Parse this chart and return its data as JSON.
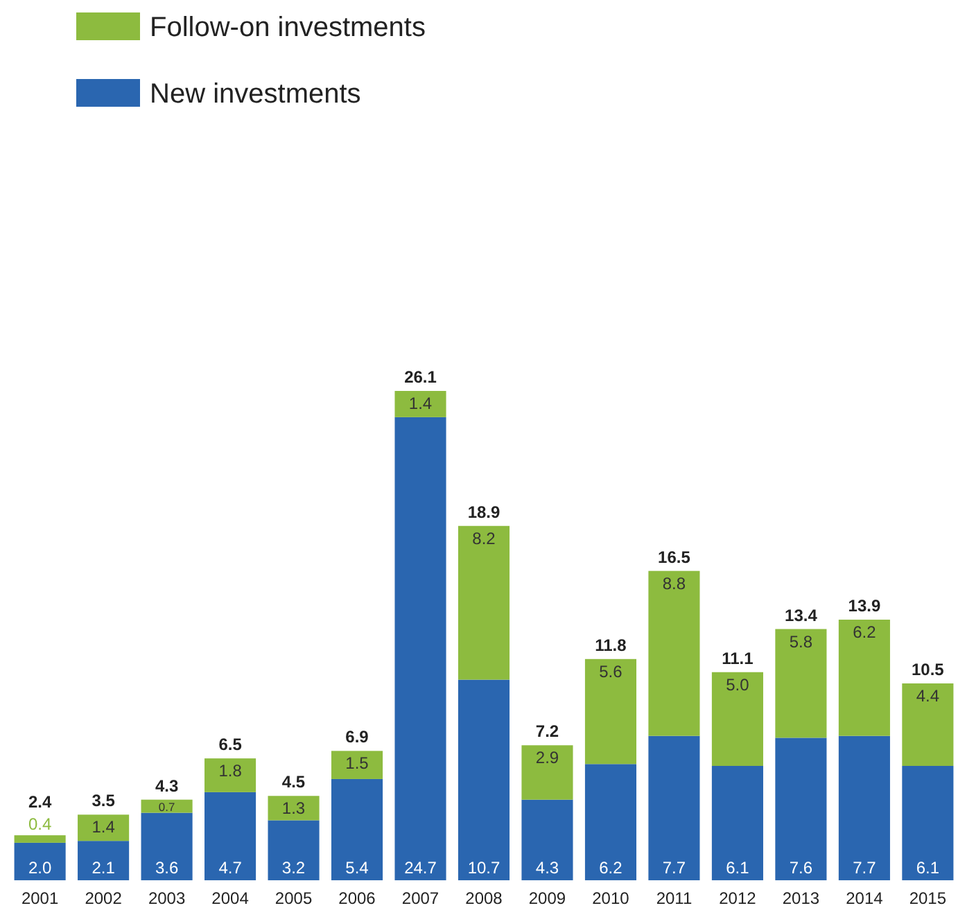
{
  "chart_data": {
    "type": "bar",
    "stacked": true,
    "legend": "top left",
    "categories": [
      "2001",
      "2002",
      "2003",
      "2004",
      "2005",
      "2006",
      "2007",
      "2008",
      "2009",
      "2010",
      "2011",
      "2012",
      "2013",
      "2014",
      "2015"
    ],
    "series": [
      {
        "name": "New investments",
        "color": "#2a66b0",
        "values": [
          2.0,
          2.1,
          3.6,
          4.7,
          3.2,
          5.4,
          24.7,
          10.7,
          4.3,
          6.2,
          7.7,
          6.1,
          7.6,
          7.7,
          6.1
        ],
        "value_labels": [
          "2.0",
          "2.1",
          "3.6",
          "4.7",
          "3.2",
          "5.4",
          "24.7",
          "10.7",
          "4.3",
          "6.2",
          "7.7",
          "6.1",
          "7.6",
          "7.7",
          "6.1"
        ]
      },
      {
        "name": "Follow-on investments",
        "color": "#8dbb3f",
        "values": [
          0.4,
          1.4,
          0.7,
          1.8,
          1.3,
          1.5,
          1.4,
          8.2,
          2.9,
          5.6,
          8.8,
          5.0,
          5.8,
          6.2,
          4.4
        ],
        "value_labels": [
          "0.4",
          "1.4",
          "0.7",
          "1.8",
          "1.3",
          "1.5",
          "1.4",
          "8.2",
          "2.9",
          "5.6",
          "8.8",
          "5.0",
          "5.8",
          "6.2",
          "4.4"
        ]
      }
    ],
    "totals": [
      "2.4",
      "3.5",
      "4.3",
      "6.5",
      "4.5",
      "6.9",
      "26.1",
      "18.9",
      "7.2",
      "11.8",
      "16.5",
      "11.1",
      "13.4",
      "13.9",
      "10.5"
    ]
  }
}
